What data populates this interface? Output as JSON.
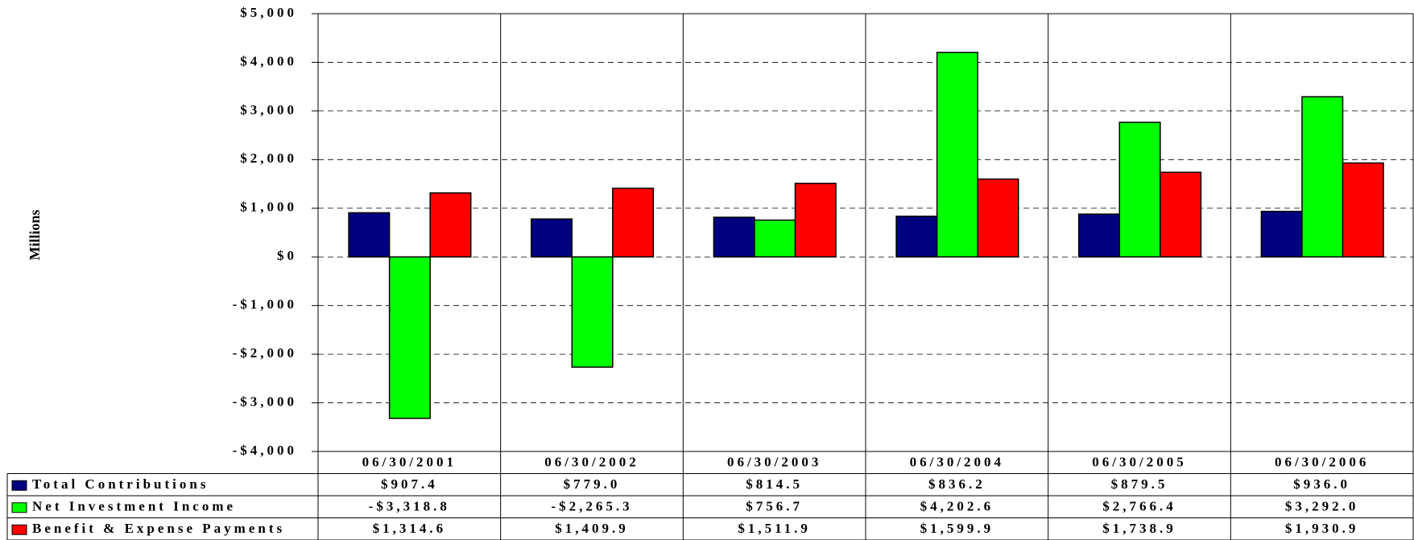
{
  "chart_data": {
    "type": "bar",
    "y_label": "Millions",
    "categories": [
      "06/30/2001",
      "06/30/2002",
      "06/30/2003",
      "06/30/2004",
      "06/30/2005",
      "06/30/2006"
    ],
    "series": [
      {
        "name": "Total Contributions",
        "color": "#000080",
        "values": [
          907.4,
          779.0,
          814.5,
          836.2,
          879.5,
          936.0
        ],
        "value_labels": [
          "$907.4",
          "$779.0",
          "$814.5",
          "$836.2",
          "$879.5",
          "$936.0"
        ]
      },
      {
        "name": "Net Investment Income",
        "color": "#00ff00",
        "values": [
          -3318.8,
          -2265.3,
          756.7,
          4202.6,
          2766.4,
          3292.0
        ],
        "value_labels": [
          "-$3,318.8",
          "-$2,265.3",
          "$756.7",
          "$4,202.6",
          "$2,766.4",
          "$3,292.0"
        ]
      },
      {
        "name": "Benefit & Expense Payments",
        "color": "#ff0000",
        "values": [
          1314.6,
          1409.9,
          1511.9,
          1599.9,
          1738.9,
          1930.9
        ],
        "value_labels": [
          "$1,314.6",
          "$1,409.9",
          "$1,511.9",
          "$1,599.9",
          "$1,738.9",
          "$1,930.9"
        ]
      }
    ],
    "ylim": [
      -4000,
      5000
    ],
    "yticks": [
      {
        "value": -4000,
        "label": "-$4,000"
      },
      {
        "value": -3000,
        "label": "-$3,000"
      },
      {
        "value": -2000,
        "label": "-$2,000"
      },
      {
        "value": -1000,
        "label": "-$1,000"
      },
      {
        "value": 0,
        "label": "$0"
      },
      {
        "value": 1000,
        "label": "$1,000"
      },
      {
        "value": 2000,
        "label": "$2,000"
      },
      {
        "value": 3000,
        "label": "$3,000"
      },
      {
        "value": 4000,
        "label": "$4,000"
      },
      {
        "value": 5000,
        "label": "$5,000"
      }
    ],
    "grid": true
  }
}
